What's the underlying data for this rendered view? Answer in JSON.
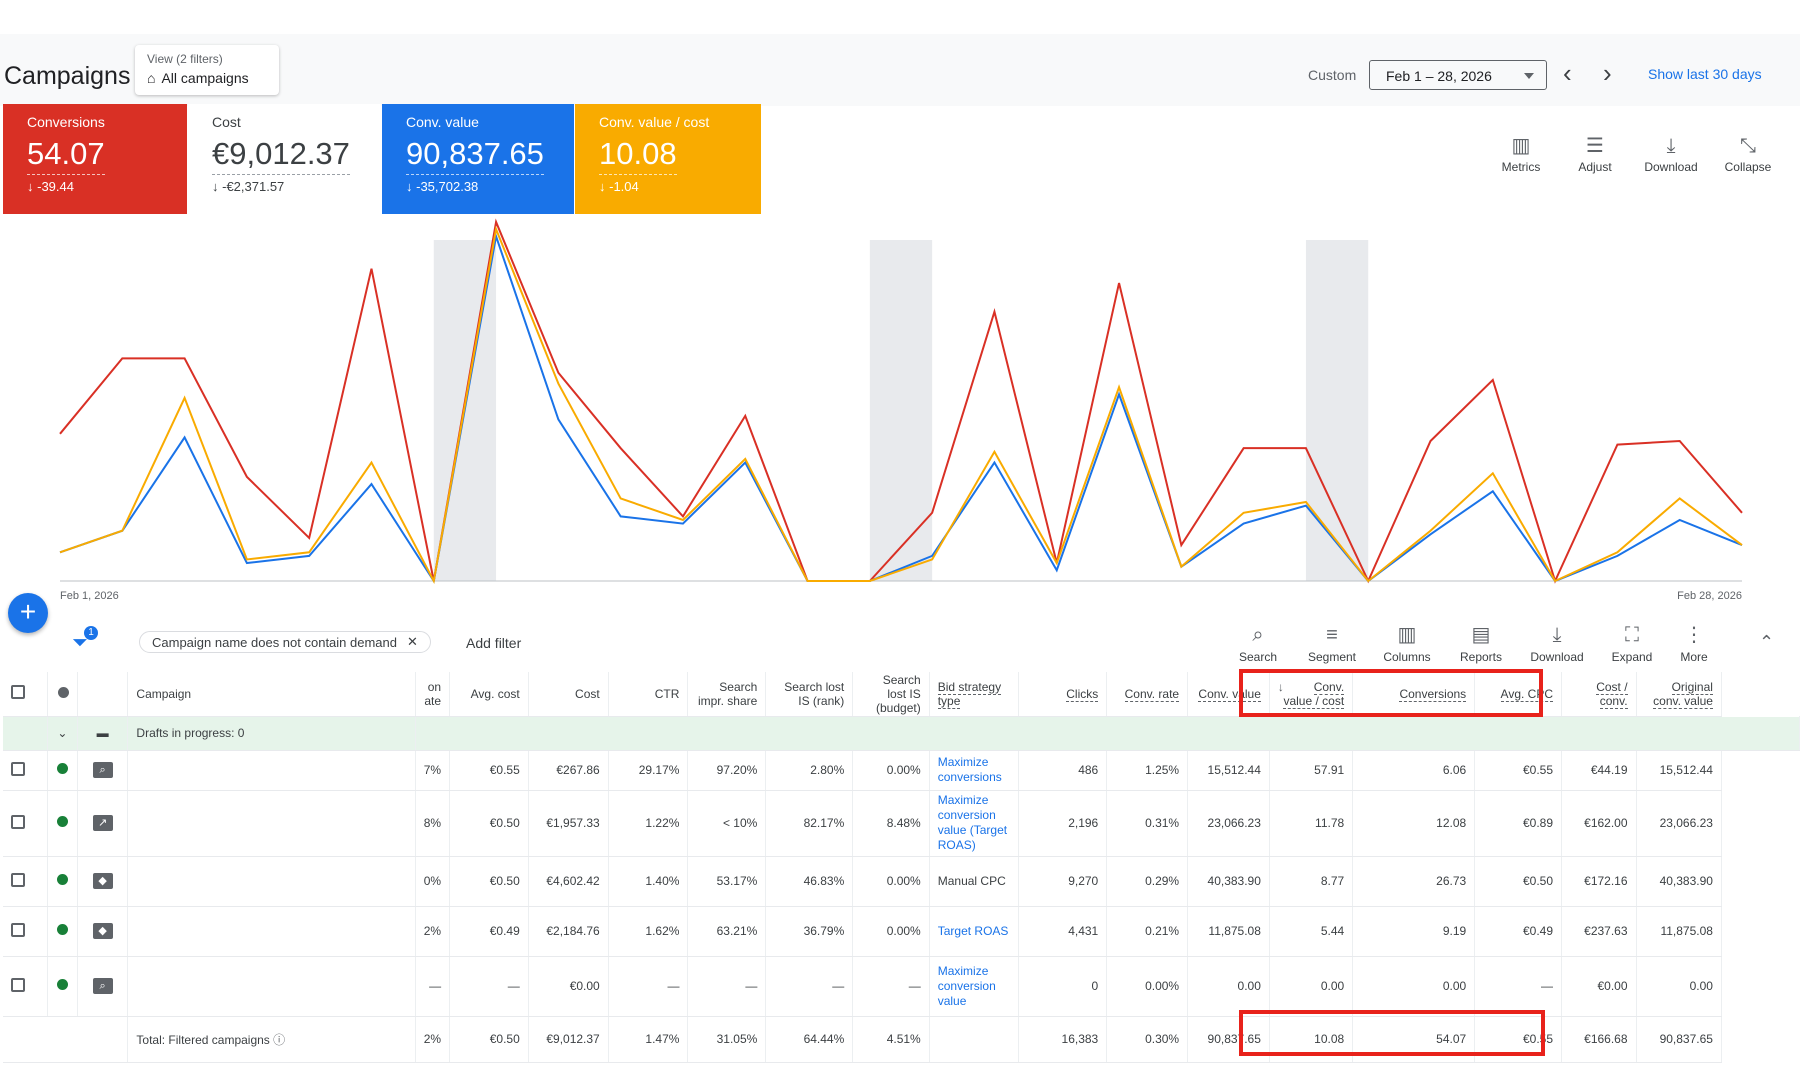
{
  "header": {
    "title": "Campaigns",
    "view_small": "View (2 filters)",
    "view_label": "All campaigns",
    "custom_label": "Custom",
    "date_range": "Feb 1 – 28, 2026",
    "show_last": "Show last 30 days"
  },
  "metrics": [
    {
      "label": "Conversions",
      "value": "54.07",
      "delta": "-39.44"
    },
    {
      "label": "Cost",
      "value": "€9,012.37",
      "delta": "-€2,371.57"
    },
    {
      "label": "Conv. value",
      "value": "90,837.65",
      "delta": "-35,702.38"
    },
    {
      "label": "Conv. value / cost",
      "value": "10.08",
      "delta": "-1.04"
    }
  ],
  "chart_tools": [
    "Metrics",
    "Adjust",
    "Download",
    "Collapse"
  ],
  "chart_data": {
    "type": "line",
    "x_start_label": "Feb 1, 2026",
    "x_end_label": "Feb 28, 2026",
    "x": [
      1,
      2,
      3,
      4,
      5,
      6,
      7,
      8,
      9,
      10,
      11,
      12,
      13,
      14,
      15,
      16,
      17,
      18,
      19,
      20,
      21,
      22,
      23,
      24,
      25,
      26,
      27,
      28
    ],
    "series": [
      {
        "color": "#d93025",
        "values": [
          0.41,
          0.62,
          0.62,
          0.29,
          0.12,
          0.87,
          0,
          1.0,
          0.58,
          0.37,
          0.18,
          0.46,
          0,
          0,
          0.19,
          0.75,
          0.05,
          0.83,
          0.1,
          0.37,
          0.37,
          0,
          0.39,
          0.56,
          0,
          0.38,
          0.39,
          0.19
        ]
      },
      {
        "color": "#1a73e8",
        "values": [
          0.08,
          0.14,
          0.4,
          0.05,
          0.07,
          0.27,
          0,
          0.96,
          0.45,
          0.18,
          0.16,
          0.33,
          0,
          0,
          0.07,
          0.33,
          0.03,
          0.52,
          0.04,
          0.16,
          0.21,
          0,
          0.13,
          0.25,
          0,
          0.07,
          0.17,
          0.1
        ]
      },
      {
        "color": "#f9ab00",
        "values": [
          0.08,
          0.14,
          0.51,
          0.06,
          0.08,
          0.33,
          0,
          0.98,
          0.55,
          0.23,
          0.17,
          0.34,
          0,
          0,
          0.06,
          0.36,
          0.05,
          0.54,
          0.04,
          0.19,
          0.22,
          0,
          0.14,
          0.3,
          0,
          0.08,
          0.23,
          0.1
        ]
      }
    ],
    "weekend_bands": [
      [
        7,
        8
      ],
      [
        14,
        15
      ],
      [
        21,
        22
      ]
    ]
  },
  "filter": {
    "badge": "1",
    "chip": "Campaign name does not contain demand",
    "add": "Add filter"
  },
  "table_tools": [
    "Search",
    "Segment",
    "Columns",
    "Reports",
    "Download",
    "Expand",
    "More"
  ],
  "table": {
    "headers": [
      "Campaign",
      "on ate",
      "Avg. cost",
      "Cost",
      "CTR",
      "Search impr. share",
      "Search lost IS (rank)",
      "Search lost IS (budget)",
      "Bid strategy type",
      "Clicks",
      "Conv. rate",
      "Conv. value",
      "Conv. value / cost",
      "Conversions",
      "Avg. CPC",
      "Cost / conv.",
      "Original conv. value"
    ],
    "drafts": "Drafts in progress: 0",
    "rows": [
      {
        "icon": "search",
        "cells": [
          "7%",
          "€0.55",
          "€267.86",
          "29.17%",
          "97.20%",
          "2.80%",
          "0.00%",
          "Maximize conversions",
          "486",
          "1.25%",
          "15,512.44",
          "57.91",
          "6.06",
          "€0.55",
          "€44.19",
          "15,512.44"
        ],
        "bid_link": true
      },
      {
        "icon": "chart",
        "cells": [
          "8%",
          "€0.50",
          "€1,957.33",
          "1.22%",
          "< 10%",
          "82.17%",
          "8.48%",
          "Maximize conversion value (Target ROAS)",
          "2,196",
          "0.31%",
          "23,066.23",
          "11.78",
          "12.08",
          "€0.89",
          "€162.00",
          "23,066.23"
        ],
        "bid_link": true
      },
      {
        "icon": "tag",
        "cells": [
          "0%",
          "€0.50",
          "€4,602.42",
          "1.40%",
          "53.17%",
          "46.83%",
          "0.00%",
          "Manual CPC",
          "9,270",
          "0.29%",
          "40,383.90",
          "8.77",
          "26.73",
          "€0.50",
          "€172.16",
          "40,383.90"
        ],
        "bid_link": false
      },
      {
        "icon": "tag",
        "cells": [
          "2%",
          "€0.49",
          "€2,184.76",
          "1.62%",
          "63.21%",
          "36.79%",
          "0.00%",
          "Target ROAS",
          "4,431",
          "0.21%",
          "11,875.08",
          "5.44",
          "9.19",
          "€0.49",
          "€237.63",
          "11,875.08"
        ],
        "bid_link": true
      },
      {
        "icon": "search",
        "cells": [
          "—",
          "—",
          "€0.00",
          "—",
          "—",
          "—",
          "—",
          "Maximize conversion value",
          "0",
          "0.00%",
          "0.00",
          "0.00",
          "0.00",
          "—",
          "€0.00",
          "0.00"
        ],
        "bid_link": true
      }
    ],
    "total_label": "Total: Filtered campaigns",
    "total": [
      "2%",
      "€0.50",
      "€9,012.37",
      "1.47%",
      "31.05%",
      "64.44%",
      "4.51%",
      "",
      "16,383",
      "0.30%",
      "90,837.65",
      "10.08",
      "54.07",
      "€0.55",
      "€166.68",
      "90,837.65"
    ]
  }
}
